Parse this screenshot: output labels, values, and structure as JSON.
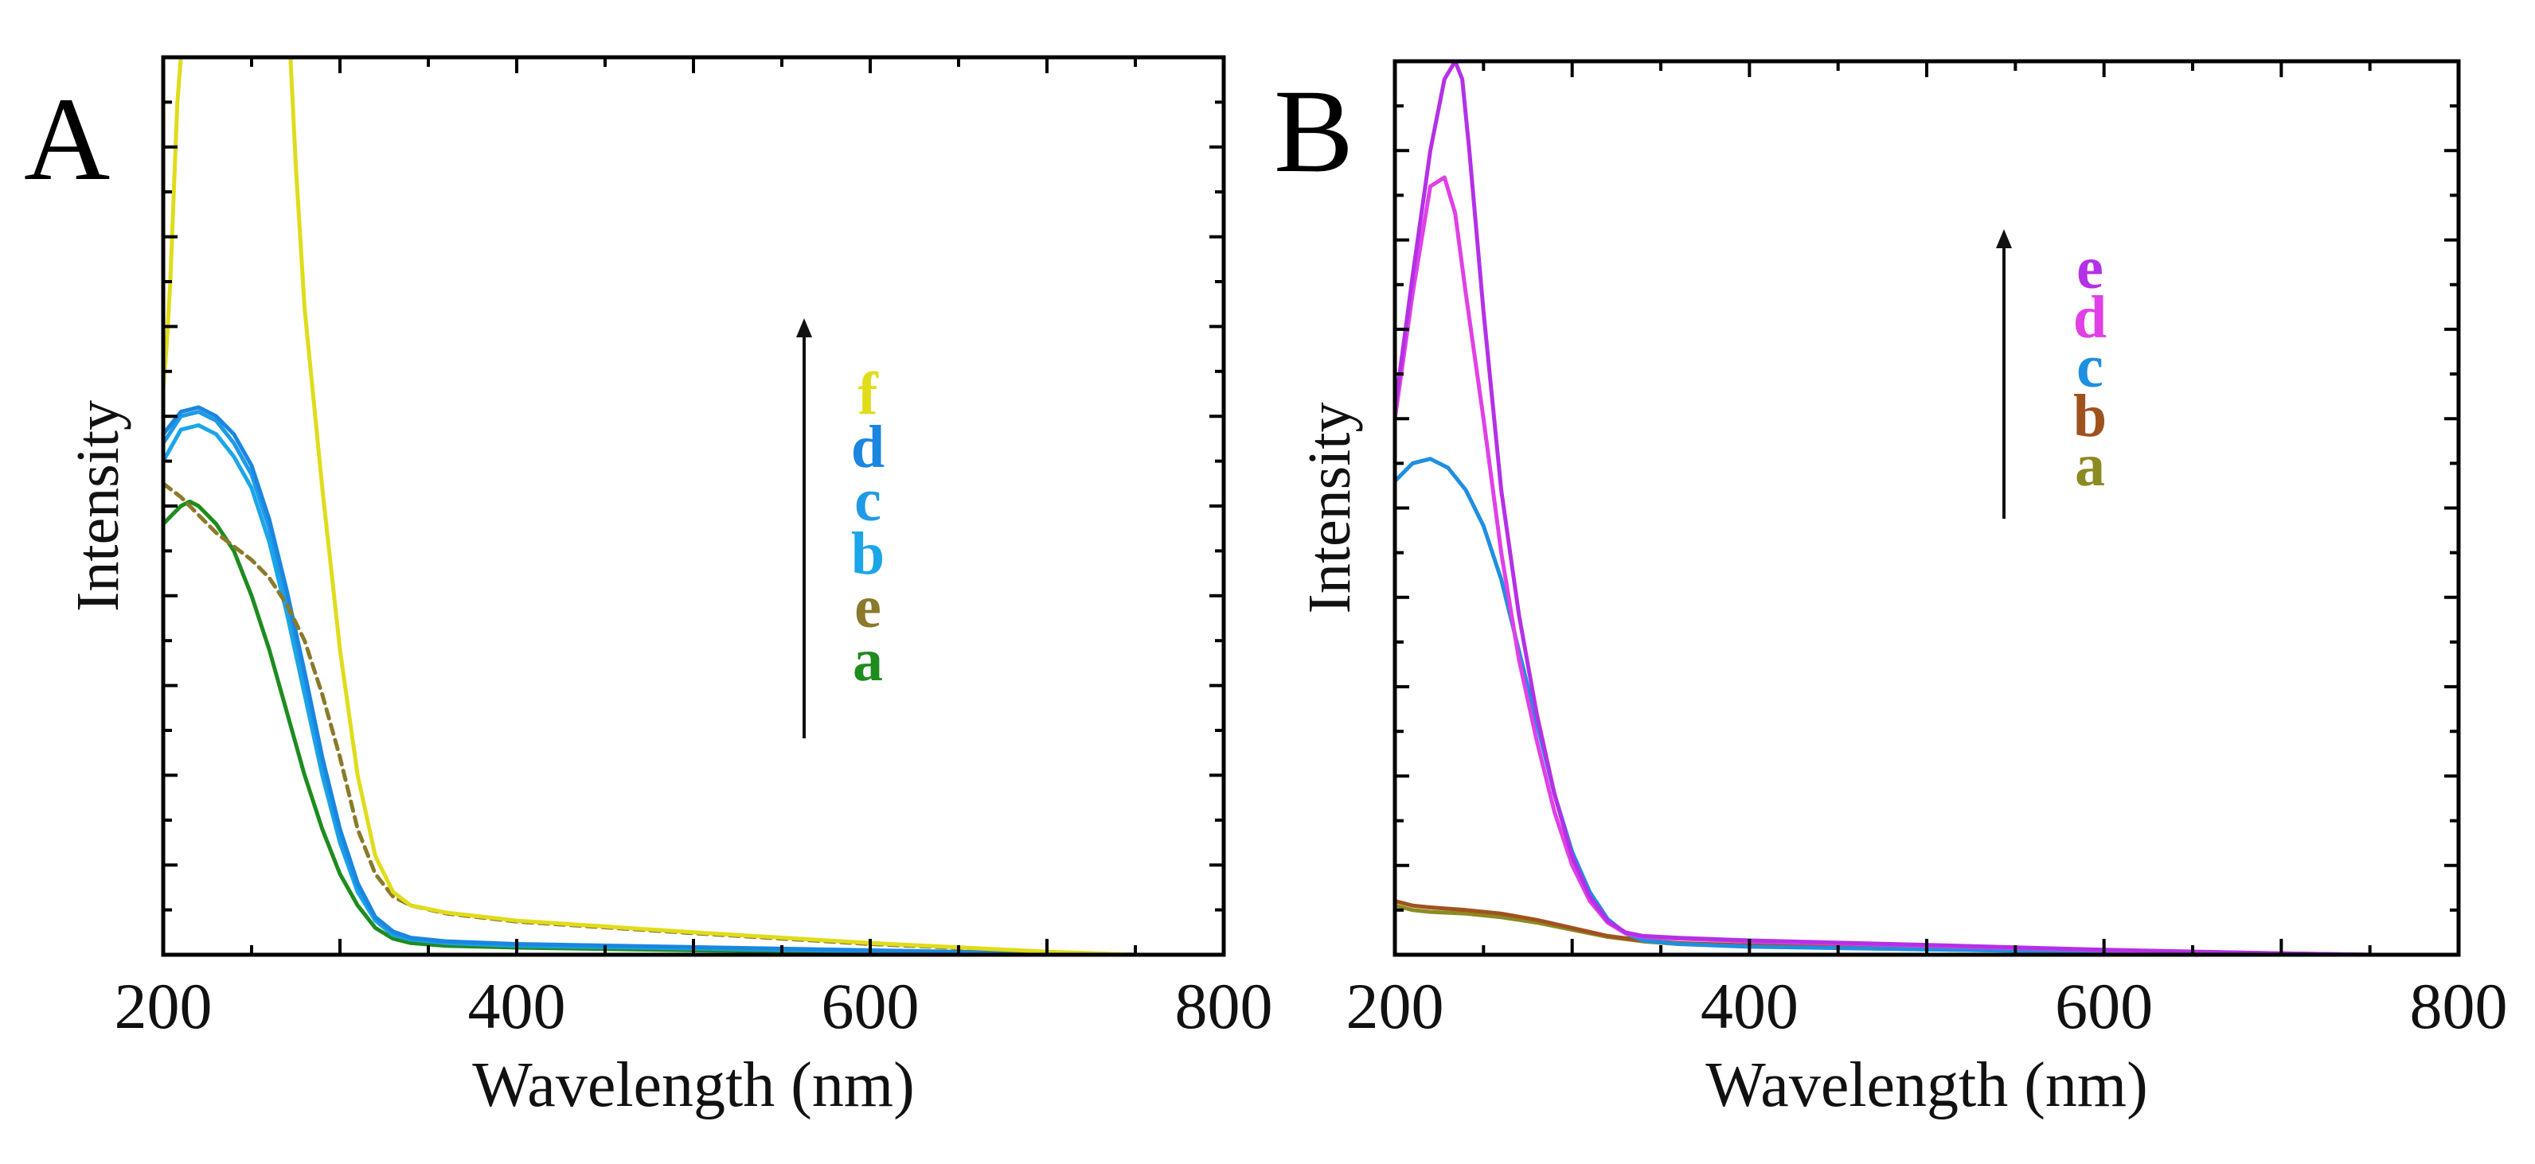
{
  "chart_data": [
    {
      "panel": "A",
      "type": "line",
      "xlabel": "Wavelength (nm)",
      "ylabel": "Intensity",
      "xlim": [
        200,
        800
      ],
      "ylim": [
        0,
        100
      ],
      "x_ticks": [
        200,
        400,
        600,
        800
      ],
      "x_tick_labels": [
        "200",
        "400",
        "600",
        "800"
      ],
      "legend_order": [
        "f",
        "d",
        "c",
        "b",
        "e",
        "a"
      ],
      "arrow": "upward arrow next to legend (increasing intensity)",
      "series": [
        {
          "name": "a",
          "color": "#1e8c1e",
          "dash": false,
          "points": [
            [
              200,
              48
            ],
            [
              205,
              49
            ],
            [
              210,
              50
            ],
            [
              215,
              50.5
            ],
            [
              220,
              50
            ],
            [
              230,
              48
            ],
            [
              240,
              45
            ],
            [
              250,
              40
            ],
            [
              260,
              34
            ],
            [
              270,
              27
            ],
            [
              280,
              20
            ],
            [
              290,
              14
            ],
            [
              300,
              9
            ],
            [
              310,
              5.5
            ],
            [
              320,
              3
            ],
            [
              330,
              1.8
            ],
            [
              340,
              1.3
            ],
            [
              360,
              1
            ],
            [
              400,
              0.8
            ],
            [
              500,
              0.5
            ],
            [
              600,
              0.3
            ],
            [
              700,
              0.1
            ],
            [
              750,
              0
            ]
          ]
        },
        {
          "name": "b",
          "color": "#1aa6e8",
          "dash": false,
          "points": [
            [
              200,
              55
            ],
            [
              210,
              58.5
            ],
            [
              220,
              59
            ],
            [
              230,
              58
            ],
            [
              240,
              55.5
            ],
            [
              250,
              52
            ],
            [
              260,
              46
            ],
            [
              270,
              38
            ],
            [
              280,
              29
            ],
            [
              290,
              20
            ],
            [
              300,
              12.5
            ],
            [
              310,
              7
            ],
            [
              320,
              3.8
            ],
            [
              330,
              2.2
            ],
            [
              340,
              1.7
            ],
            [
              360,
              1.3
            ],
            [
              400,
              1
            ],
            [
              500,
              0.7
            ],
            [
              600,
              0.4
            ],
            [
              700,
              0.15
            ],
            [
              750,
              0
            ]
          ]
        },
        {
          "name": "c",
          "color": "#1f9be6",
          "dash": false,
          "points": [
            [
              200,
              57
            ],
            [
              210,
              60
            ],
            [
              220,
              60.5
            ],
            [
              230,
              59.5
            ],
            [
              240,
              57
            ],
            [
              250,
              53.5
            ],
            [
              260,
              47.5
            ],
            [
              270,
              39.5
            ],
            [
              280,
              30.5
            ],
            [
              290,
              21
            ],
            [
              300,
              13
            ],
            [
              310,
              7.5
            ],
            [
              320,
              4
            ],
            [
              330,
              2.4
            ],
            [
              340,
              1.8
            ],
            [
              360,
              1.4
            ],
            [
              400,
              1.1
            ],
            [
              500,
              0.8
            ],
            [
              600,
              0.45
            ],
            [
              700,
              0.15
            ],
            [
              750,
              0
            ]
          ]
        },
        {
          "name": "d",
          "color": "#1a86e0",
          "dash": false,
          "points": [
            [
              200,
              58
            ],
            [
              210,
              60.5
            ],
            [
              220,
              61
            ],
            [
              230,
              60
            ],
            [
              240,
              58
            ],
            [
              250,
              54.5
            ],
            [
              260,
              48.5
            ],
            [
              270,
              40.5
            ],
            [
              280,
              31.5
            ],
            [
              290,
              22
            ],
            [
              300,
              14
            ],
            [
              310,
              8
            ],
            [
              320,
              4.2
            ],
            [
              330,
              2.6
            ],
            [
              340,
              1.9
            ],
            [
              360,
              1.5
            ],
            [
              400,
              1.2
            ],
            [
              500,
              0.85
            ],
            [
              600,
              0.5
            ],
            [
              700,
              0.15
            ],
            [
              750,
              0
            ]
          ]
        },
        {
          "name": "e",
          "color": "#8a7a2a",
          "dash": true,
          "points": [
            [
              200,
              52.5
            ],
            [
              210,
              51
            ],
            [
              220,
              49
            ],
            [
              230,
              47
            ],
            [
              240,
              45.5
            ],
            [
              250,
              44
            ],
            [
              260,
              42
            ],
            [
              270,
              39
            ],
            [
              280,
              35
            ],
            [
              290,
              29
            ],
            [
              300,
              22
            ],
            [
              310,
              14
            ],
            [
              320,
              9
            ],
            [
              330,
              6.5
            ],
            [
              340,
              5.5
            ],
            [
              360,
              4.6
            ],
            [
              400,
              3.7
            ],
            [
              500,
              2.4
            ],
            [
              600,
              1.2
            ],
            [
              700,
              0.3
            ],
            [
              750,
              0
            ]
          ]
        },
        {
          "name": "f",
          "color": "#e0dc1a",
          "dash": false,
          "points": [
            [
              200,
              63
            ],
            [
              202,
              68
            ],
            [
              204,
              75
            ],
            [
              206,
              85
            ],
            [
              208,
              95
            ],
            [
              210,
              100
            ],
            [
              272,
              100
            ],
            [
              275,
              88
            ],
            [
              280,
              72
            ],
            [
              290,
              52
            ],
            [
              300,
              34
            ],
            [
              310,
              20
            ],
            [
              320,
              11
            ],
            [
              330,
              7
            ],
            [
              340,
              5.5
            ],
            [
              360,
              4.7
            ],
            [
              400,
              3.8
            ],
            [
              500,
              2.5
            ],
            [
              600,
              1.3
            ],
            [
              700,
              0.35
            ],
            [
              750,
              0
            ]
          ]
        }
      ]
    },
    {
      "panel": "B",
      "type": "line",
      "xlabel": "Wavelength (nm)",
      "ylabel": "Intensity",
      "xlim": [
        200,
        800
      ],
      "ylim": [
        0,
        100
      ],
      "x_ticks": [
        200,
        400,
        600,
        800
      ],
      "x_tick_labels": [
        "200",
        "400",
        "600",
        "800"
      ],
      "legend_order": [
        "e",
        "d",
        "c",
        "b",
        "a"
      ],
      "arrow": "upward arrow next to legend (increasing intensity)",
      "series": [
        {
          "name": "a",
          "color": "#8c8a22",
          "dash": false,
          "points": [
            [
              200,
              5.5
            ],
            [
              210,
              5
            ],
            [
              220,
              4.8
            ],
            [
              240,
              4.6
            ],
            [
              260,
              4.2
            ],
            [
              280,
              3.6
            ],
            [
              300,
              2.8
            ],
            [
              320,
              2
            ],
            [
              340,
              1.5
            ],
            [
              360,
              1.2
            ],
            [
              400,
              1
            ],
            [
              500,
              0.6
            ],
            [
              600,
              0.35
            ],
            [
              700,
              0.1
            ],
            [
              750,
              0
            ]
          ]
        },
        {
          "name": "b",
          "color": "#a0521e",
          "dash": false,
          "points": [
            [
              200,
              6
            ],
            [
              210,
              5.5
            ],
            [
              220,
              5.3
            ],
            [
              240,
              5
            ],
            [
              260,
              4.6
            ],
            [
              280,
              3.9
            ],
            [
              300,
              3
            ],
            [
              320,
              2.1
            ],
            [
              340,
              1.6
            ],
            [
              360,
              1.3
            ],
            [
              400,
              1.05
            ],
            [
              500,
              0.65
            ],
            [
              600,
              0.35
            ],
            [
              700,
              0.1
            ],
            [
              750,
              0
            ]
          ]
        },
        {
          "name": "c",
          "color": "#1f8fe0",
          "dash": false,
          "points": [
            [
              200,
              53
            ],
            [
              210,
              55
            ],
            [
              220,
              55.5
            ],
            [
              230,
              54.5
            ],
            [
              240,
              52
            ],
            [
              250,
              48
            ],
            [
              260,
              42
            ],
            [
              270,
              34
            ],
            [
              280,
              26
            ],
            [
              290,
              18
            ],
            [
              300,
              11.5
            ],
            [
              310,
              7
            ],
            [
              320,
              4
            ],
            [
              330,
              2.4
            ],
            [
              340,
              1.6
            ],
            [
              360,
              1.2
            ],
            [
              400,
              0.9
            ],
            [
              500,
              0.6
            ],
            [
              600,
              0.3
            ],
            [
              700,
              0.1
            ],
            [
              750,
              0
            ]
          ]
        },
        {
          "name": "d",
          "color": "#e040e6",
          "dash": false,
          "points": [
            [
              200,
              60
            ],
            [
              210,
              74
            ],
            [
              220,
              86
            ],
            [
              228,
              87
            ],
            [
              234,
              83
            ],
            [
              240,
              74
            ],
            [
              250,
              60
            ],
            [
              260,
              45
            ],
            [
              270,
              33
            ],
            [
              280,
              24
            ],
            [
              290,
              16
            ],
            [
              300,
              10
            ],
            [
              310,
              6
            ],
            [
              320,
              3.6
            ],
            [
              330,
              2.4
            ],
            [
              340,
              2
            ],
            [
              360,
              1.8
            ],
            [
              400,
              1.5
            ],
            [
              500,
              1
            ],
            [
              600,
              0.5
            ],
            [
              700,
              0.15
            ],
            [
              750,
              0
            ]
          ]
        },
        {
          "name": "e",
          "color": "#b430e6",
          "dash": false,
          "points": [
            [
              200,
              61
            ],
            [
              210,
              76
            ],
            [
              220,
              90
            ],
            [
              228,
              98
            ],
            [
              234,
              100
            ],
            [
              238,
              98
            ],
            [
              242,
              90
            ],
            [
              250,
              72
            ],
            [
              260,
              52
            ],
            [
              270,
              38
            ],
            [
              280,
              27
            ],
            [
              290,
              18
            ],
            [
              300,
              11
            ],
            [
              310,
              6.5
            ],
            [
              320,
              3.8
            ],
            [
              330,
              2.5
            ],
            [
              340,
              2.1
            ],
            [
              360,
              1.9
            ],
            [
              400,
              1.6
            ],
            [
              500,
              1.1
            ],
            [
              600,
              0.55
            ],
            [
              700,
              0.15
            ],
            [
              750,
              0
            ]
          ]
        }
      ]
    }
  ]
}
